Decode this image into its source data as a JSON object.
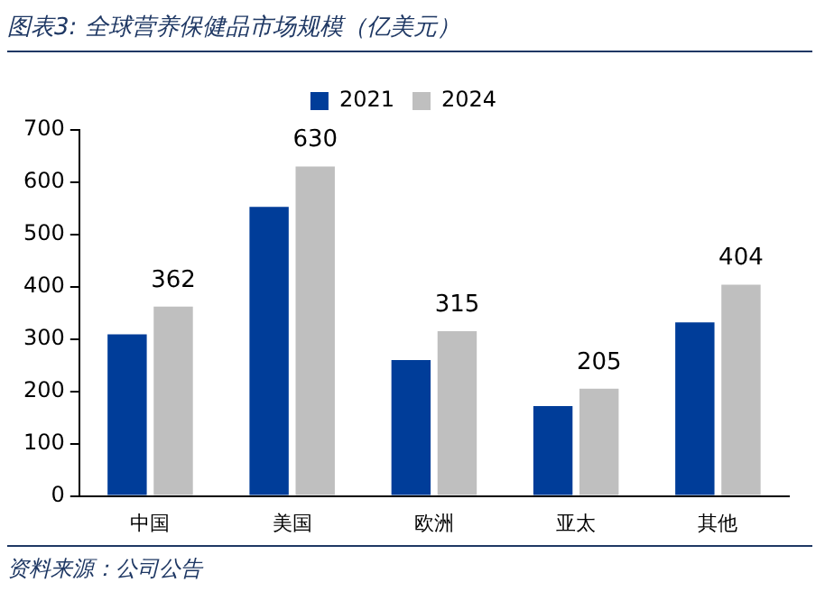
{
  "chart_data": {
    "type": "bar",
    "title": "图表3: 全球营养保健品市场规模（亿美元）",
    "categories": [
      "中国",
      "美国",
      "欧洲",
      "亚太",
      "其他"
    ],
    "series": [
      {
        "name": "2021",
        "color": "#003d99",
        "values": [
          309,
          553,
          260,
          172,
          332
        ]
      },
      {
        "name": "2024",
        "color": "#bfbfbf",
        "values": [
          362,
          630,
          315,
          205,
          404
        ],
        "value_labels": [
          "362",
          "630",
          "315",
          "205",
          "404"
        ]
      }
    ],
    "ylim": [
      0,
      700
    ],
    "yticks": [
      0,
      100,
      200,
      300,
      400,
      500,
      600,
      700
    ],
    "grid": false,
    "legend": "top",
    "annotations": [
      "资料来源：公司公告"
    ]
  }
}
